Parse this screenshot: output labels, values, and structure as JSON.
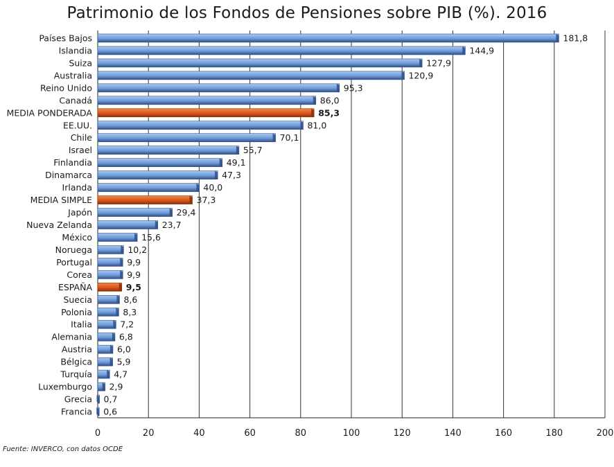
{
  "chart_data": {
    "type": "bar",
    "orientation": "horizontal",
    "title": "Patrimonio de los Fondos de Pensiones sobre PIB (%). 2016",
    "categories": [
      "Países Bajos",
      "Islandia",
      "Suiza",
      "Australia",
      "Reino Unido",
      "Canadá",
      "MEDIA PONDERADA",
      "EE.UU.",
      "Chile",
      "Israel",
      "Finlandia",
      "Dinamarca",
      "Irlanda",
      "MEDIA SIMPLE",
      "Japón",
      "Nueva Zelanda",
      "México",
      "Noruega",
      "Portugal",
      "Corea",
      "ESPAÑA",
      "Suecia",
      "Polonia",
      "Italia",
      "Alemania",
      "Austria",
      "Bélgica",
      "Turquía",
      "Luxemburgo",
      "Grecia",
      "Francia"
    ],
    "values": [
      181.8,
      144.9,
      127.9,
      120.9,
      95.3,
      86.0,
      85.3,
      81.0,
      70.1,
      55.7,
      49.1,
      47.3,
      40.0,
      37.3,
      29.4,
      23.7,
      15.6,
      10.2,
      9.9,
      9.9,
      9.5,
      8.6,
      8.3,
      7.2,
      6.8,
      6.0,
      5.9,
      4.7,
      2.9,
      0.7,
      0.6
    ],
    "value_labels": [
      "181,8",
      "144,9",
      "127,9",
      "120,9",
      "95,3",
      "86,0",
      "85,3",
      "81,0",
      "70,1",
      "55,7",
      "49,1",
      "47,3",
      "40,0",
      "37,3",
      "29,4",
      "23,7",
      "15,6",
      "10,2",
      "9,9",
      "9,9",
      "9,5",
      "8,6",
      "8,3",
      "7,2",
      "6,8",
      "6,0",
      "5,9",
      "4,7",
      "2,9",
      "0,7",
      "0,6"
    ],
    "highlighted": [
      "MEDIA PONDERADA",
      "MEDIA SIMPLE",
      "ESPAÑA"
    ],
    "bold_value_labels": [
      "MEDIA PONDERADA",
      "ESPAÑA"
    ],
    "xlim": [
      0,
      200
    ],
    "xticks": [
      "0",
      "20",
      "40",
      "60",
      "80",
      "100",
      "120",
      "140",
      "160",
      "180",
      "200"
    ],
    "grid": true,
    "colors": {
      "bar": "#7ba7e0",
      "bar_dark": "#2f4f88",
      "highlight": "#e2641e",
      "highlight_dark": "#8a3008",
      "grid": "#333333"
    }
  },
  "source_note": "Fuente: INVERCO, con datos OCDE"
}
